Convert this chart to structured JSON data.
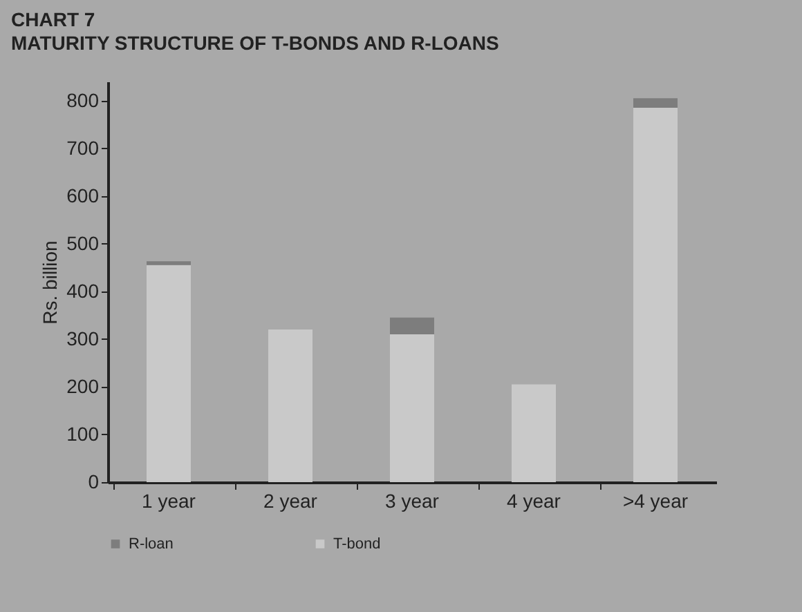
{
  "chart_data": {
    "type": "bar",
    "title": "CHART 7",
    "subtitle": "MATURITY STRUCTURE OF T-BONDS AND R-LOANS",
    "ylabel": "Rs. billion",
    "categories": [
      "1 year",
      "2 year",
      "3 year",
      "4 year",
      ">4 year"
    ],
    "stacked": true,
    "series": [
      {
        "name": "T-bond",
        "color": "#c9c9c9",
        "values": [
          455,
          320,
          310,
          205,
          785
        ]
      },
      {
        "name": "R-loan",
        "color": "#7d7d7d",
        "values": [
          8,
          0,
          35,
          0,
          20
        ]
      }
    ],
    "ylim": [
      0,
      840
    ],
    "yticks": [
      0,
      100,
      200,
      300,
      400,
      500,
      600,
      700,
      800
    ],
    "legend": "bottom",
    "grid": false
  }
}
